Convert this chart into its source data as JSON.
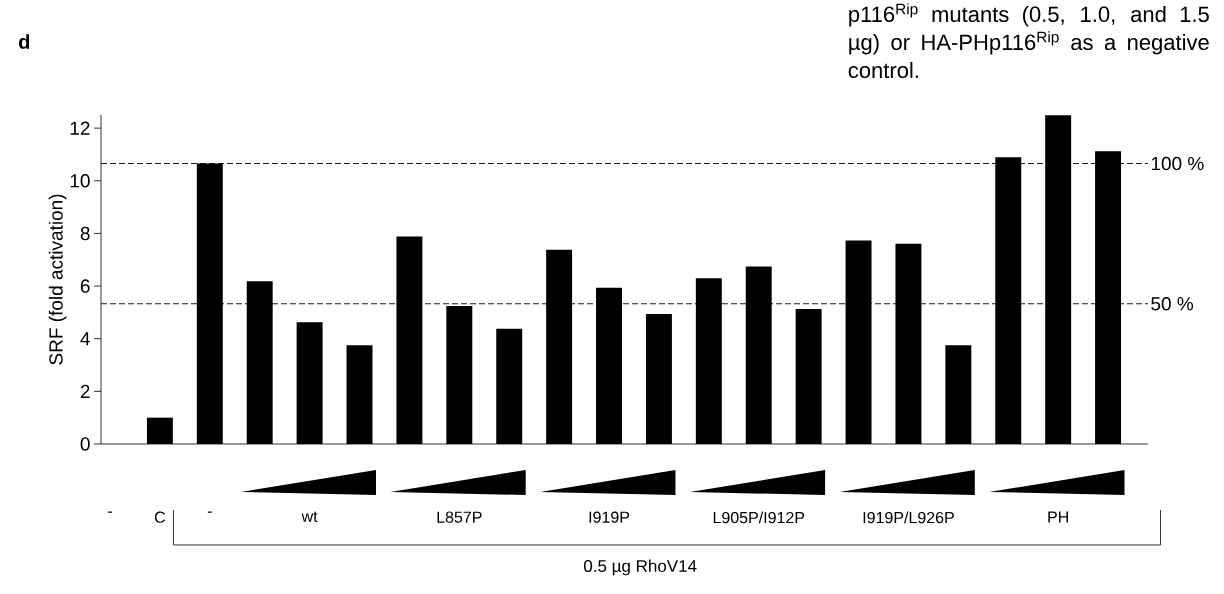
{
  "chart_data": {
    "type": "bar",
    "annotations": [
      "d",
      "p116$^{Rip}$ mutants (0.5, 1.0, and 1.5 µg) or HA-PHp116$^{Rip}$ as a negative control."
    ],
    "ylabel": "SRF (fold activation)",
    "xlabel": "0.5 µg RhoV14",
    "categories": [
      "-",
      "C",
      "-",
      null,
      "wt",
      null,
      null,
      "L857P",
      null,
      null,
      "I919P",
      null,
      null,
      "L905P/I912P",
      null,
      null,
      "I919P/L926P",
      null,
      null,
      "PH",
      null
    ],
    "values": [
      null,
      1.0,
      10.66,
      6.18,
      4.63,
      3.75,
      7.88,
      5.24,
      4.38,
      7.38,
      5.94,
      4.94,
      6.3,
      6.74,
      5.13,
      7.73,
      7.61,
      3.75,
      10.89,
      12.49,
      11.12
    ],
    "color": "#000000",
    "ylim": [
      0,
      12.5
    ],
    "yticks": [
      0,
      2,
      4,
      6,
      8,
      10,
      12
    ],
    "y2lim": [
      0,
      117.3
    ],
    "ref_lines": [
      {
        "axis": "y2",
        "value": 100,
        "label": "100 %",
        "line_style": "dashed"
      },
      {
        "axis": "y2",
        "value": 50,
        "label": "50 %",
        "line_style": "dashed"
      }
    ]
  }
}
